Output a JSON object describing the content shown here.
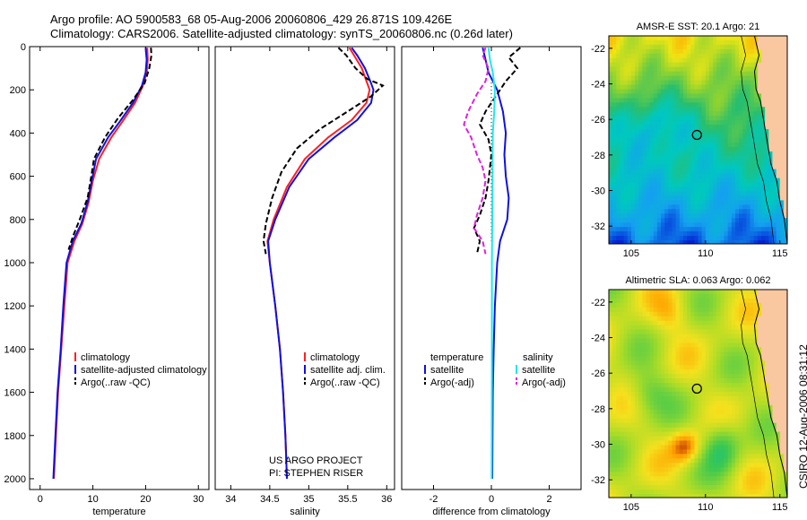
{
  "header": {
    "line1": "Argo profile: AO 5900583_68 05-Aug-2006 20060806_429 26.871S 109.426E",
    "line2": "Climatology: CARS2006. Satellite-adjusted climatology: synTS_20060806.nc (0.26d later)"
  },
  "credit": {
    "pi_project": "US ARGO PROJECT",
    "pi_name": "PI: STEPHEN RISER",
    "stamp": "CSIRO 12-Aug-2006 08:31:12"
  },
  "colors": {
    "climatology": "#ff2020",
    "satellite": "#1010e0",
    "argo": "#000000",
    "salinity_satellite": "#20e8e8",
    "salinity_argo": "#e020e0",
    "land": "#f9c7a0"
  },
  "chart_data": [
    {
      "type": "line",
      "panel": "temperature",
      "xlabel": "temperature",
      "ylabel": "",
      "xlim": [
        -2,
        32
      ],
      "ylim": [
        2050,
        0
      ],
      "xticks": [
        0,
        10,
        20,
        30
      ],
      "yticks": [
        0,
        200,
        400,
        600,
        800,
        1000,
        1200,
        1400,
        1600,
        1800,
        2000
      ],
      "legend": [
        "climatology",
        "satellite-adjusted climatology",
        "Argo(..raw -QC)"
      ],
      "series": [
        {
          "name": "climatology",
          "style": "solid",
          "color": "#ff2020",
          "points": [
            [
              20.3,
              5
            ],
            [
              20.4,
              60
            ],
            [
              20.2,
              120
            ],
            [
              19.5,
              180
            ],
            [
              18.0,
              260
            ],
            [
              15.8,
              340
            ],
            [
              13.5,
              420
            ],
            [
              11.2,
              520
            ],
            [
              10.0,
              620
            ],
            [
              9.2,
              720
            ],
            [
              8.0,
              820
            ],
            [
              6.5,
              900
            ],
            [
              5.2,
              1000
            ],
            [
              4.6,
              1200
            ],
            [
              4.0,
              1400
            ],
            [
              3.4,
              1600
            ],
            [
              3.0,
              1800
            ],
            [
              2.6,
              2000
            ]
          ]
        },
        {
          "name": "satellite-adjusted climatology",
          "style": "solid",
          "color": "#1010e0",
          "points": [
            [
              20.0,
              5
            ],
            [
              20.2,
              60
            ],
            [
              20.0,
              120
            ],
            [
              19.3,
              180
            ],
            [
              17.6,
              260
            ],
            [
              15.3,
              340
            ],
            [
              12.9,
              420
            ],
            [
              10.6,
              520
            ],
            [
              9.8,
              620
            ],
            [
              9.0,
              720
            ],
            [
              7.8,
              820
            ],
            [
              6.2,
              900
            ],
            [
              5.0,
              1000
            ],
            [
              4.4,
              1200
            ],
            [
              3.9,
              1400
            ],
            [
              3.3,
              1600
            ],
            [
              2.9,
              1800
            ],
            [
              2.5,
              2000
            ]
          ]
        },
        {
          "name": "Argo(..raw -QC)",
          "style": "dashed",
          "color": "#000000",
          "points": [
            [
              21.0,
              5
            ],
            [
              21.1,
              40
            ],
            [
              20.7,
              100
            ],
            [
              19.8,
              170
            ],
            [
              17.5,
              250
            ],
            [
              14.8,
              330
            ],
            [
              12.3,
              420
            ],
            [
              10.2,
              520
            ],
            [
              9.7,
              600
            ],
            [
              9.0,
              700
            ],
            [
              7.5,
              800
            ],
            [
              6.2,
              880
            ],
            [
              5.4,
              940
            ]
          ]
        }
      ]
    },
    {
      "type": "line",
      "panel": "salinity",
      "xlabel": "salinity",
      "ylabel": "",
      "xlim": [
        33.8,
        36.1
      ],
      "ylim": [
        2050,
        0
      ],
      "xticks": [
        34,
        34.5,
        35,
        35.5,
        36
      ],
      "legend": [
        "climatology",
        "satellite adj. clim.",
        "Argo(..raw -QC)"
      ],
      "series": [
        {
          "name": "climatology",
          "style": "solid",
          "color": "#ff2020",
          "points": [
            [
              35.52,
              5
            ],
            [
              35.58,
              40
            ],
            [
              35.68,
              100
            ],
            [
              35.75,
              170
            ],
            [
              35.78,
              200
            ],
            [
              35.74,
              260
            ],
            [
              35.55,
              340
            ],
            [
              35.25,
              420
            ],
            [
              34.95,
              520
            ],
            [
              34.72,
              650
            ],
            [
              34.55,
              800
            ],
            [
              34.47,
              900
            ],
            [
              34.5,
              1000
            ],
            [
              34.57,
              1200
            ],
            [
              34.63,
              1400
            ],
            [
              34.67,
              1600
            ],
            [
              34.7,
              1800
            ],
            [
              34.72,
              2000
            ]
          ]
        },
        {
          "name": "satellite adj. clim.",
          "style": "solid",
          "color": "#1010e0",
          "points": [
            [
              35.55,
              5
            ],
            [
              35.62,
              40
            ],
            [
              35.72,
              100
            ],
            [
              35.8,
              170
            ],
            [
              35.83,
              200
            ],
            [
              35.8,
              260
            ],
            [
              35.62,
              340
            ],
            [
              35.33,
              420
            ],
            [
              35.0,
              520
            ],
            [
              34.75,
              650
            ],
            [
              34.57,
              800
            ],
            [
              34.48,
              900
            ],
            [
              34.5,
              1000
            ],
            [
              34.57,
              1200
            ],
            [
              34.63,
              1400
            ],
            [
              34.67,
              1600
            ],
            [
              34.7,
              1800
            ],
            [
              34.72,
              2000
            ]
          ]
        },
        {
          "name": "Argo(..raw -QC)",
          "style": "dashed",
          "color": "#000000",
          "points": [
            [
              35.38,
              5
            ],
            [
              35.48,
              40
            ],
            [
              35.6,
              100
            ],
            [
              35.75,
              150
            ],
            [
              35.95,
              180
            ],
            [
              35.8,
              230
            ],
            [
              35.5,
              300
            ],
            [
              35.15,
              380
            ],
            [
              34.85,
              470
            ],
            [
              34.65,
              580
            ],
            [
              34.53,
              700
            ],
            [
              34.45,
              820
            ],
            [
              34.42,
              900
            ],
            [
              34.45,
              960
            ]
          ]
        }
      ]
    },
    {
      "type": "line",
      "panel": "difference",
      "xlabel": "difference from climatology",
      "ylabel": "",
      "xlim": [
        -3.1,
        3.1
      ],
      "ylim": [
        2050,
        0
      ],
      "xticks": [
        -2,
        0,
        2
      ],
      "legend_temperature_title": "temperature",
      "legend_salinity_title": "salinity",
      "legend": [
        "satellite",
        "Argo(-adj)",
        "satellite",
        "Argo(-adj)"
      ],
      "series": [
        {
          "name": "temperature satellite",
          "style": "solid",
          "color": "#1010e0",
          "points": [
            [
              -0.3,
              5
            ],
            [
              -0.2,
              60
            ],
            [
              -0.1,
              120
            ],
            [
              0.2,
              200
            ],
            [
              0.4,
              300
            ],
            [
              0.5,
              400
            ],
            [
              0.45,
              500
            ],
            [
              0.5,
              600
            ],
            [
              0.6,
              700
            ],
            [
              0.55,
              800
            ],
            [
              0.3,
              900
            ],
            [
              0.2,
              1000
            ],
            [
              0.12,
              1200
            ],
            [
              0.08,
              1400
            ],
            [
              0.05,
              1600
            ],
            [
              0.04,
              1800
            ],
            [
              0.03,
              2000
            ]
          ]
        },
        {
          "name": "temperature Argo(-adj)",
          "style": "dashed",
          "color": "#000000",
          "points": [
            [
              1.0,
              5
            ],
            [
              0.6,
              50
            ],
            [
              0.9,
              100
            ],
            [
              0.5,
              160
            ],
            [
              0.2,
              220
            ],
            [
              -0.2,
              300
            ],
            [
              -0.4,
              360
            ],
            [
              -0.1,
              430
            ],
            [
              0.0,
              500
            ],
            [
              -0.05,
              560
            ],
            [
              -0.1,
              620
            ],
            [
              -0.2,
              700
            ],
            [
              -0.4,
              780
            ],
            [
              -0.6,
              840
            ],
            [
              -0.4,
              900
            ],
            [
              -0.5,
              960
            ]
          ]
        },
        {
          "name": "salinity satellite",
          "style": "solid",
          "color": "#20e8e8",
          "points": [
            [
              -0.1,
              5
            ],
            [
              -0.05,
              60
            ],
            [
              0.05,
              120
            ],
            [
              0.12,
              200
            ],
            [
              0.1,
              300
            ],
            [
              0.05,
              400
            ],
            [
              0.04,
              600
            ],
            [
              0.03,
              800
            ],
            [
              0.02,
              1000
            ],
            [
              0.02,
              1500
            ],
            [
              0.01,
              2000
            ]
          ]
        },
        {
          "name": "salinity Argo(-adj)",
          "style": "dashed",
          "color": "#e020e0",
          "points": [
            [
              -0.2,
              5
            ],
            [
              -0.3,
              40
            ],
            [
              -0.1,
              100
            ],
            [
              -0.2,
              160
            ],
            [
              -0.5,
              220
            ],
            [
              -0.8,
              300
            ],
            [
              -0.95,
              360
            ],
            [
              -0.7,
              420
            ],
            [
              -0.5,
              500
            ],
            [
              -0.3,
              560
            ],
            [
              -0.2,
              620
            ],
            [
              -0.3,
              700
            ],
            [
              -0.5,
              780
            ],
            [
              -0.6,
              840
            ],
            [
              -0.3,
              900
            ],
            [
              -0.2,
              960
            ]
          ]
        }
      ]
    },
    {
      "type": "heatmap",
      "panel": "sst_map",
      "title": "AMSR-E SST: 20.1 Argo: 21",
      "xlim": [
        103.5,
        115.5
      ],
      "ylim": [
        -33,
        -21.3
      ],
      "xticks": [
        105,
        110,
        115
      ],
      "yticks": [
        -22,
        -24,
        -26,
        -28,
        -30,
        -32
      ],
      "marker": {
        "lon": 109.426,
        "lat": -26.871
      }
    },
    {
      "type": "heatmap",
      "panel": "sla_map",
      "title": "Altimetric SLA: 0.063 Argo: 0.062",
      "xlim": [
        103.5,
        115.5
      ],
      "ylim": [
        -33,
        -21.3
      ],
      "xticks": [
        105,
        110,
        115
      ],
      "yticks": [
        -22,
        -24,
        -26,
        -28,
        -30,
        -32
      ],
      "marker": {
        "lon": 109.426,
        "lat": -26.871
      }
    }
  ]
}
